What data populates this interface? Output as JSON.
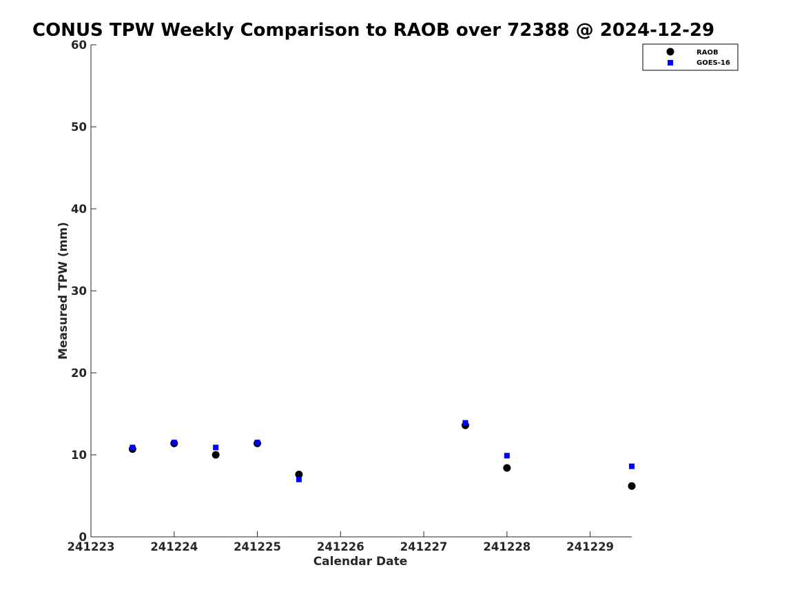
{
  "chart_data": {
    "type": "scatter",
    "title": "CONUS TPW Weekly Comparison to RAOB over 72388 @ 2024-12-29",
    "xlabel": "Calendar Date",
    "ylabel": "Measured TPW (mm)",
    "x_ticks": [
      "241223",
      "241224",
      "241225",
      "241226",
      "241227",
      "241228",
      "241229"
    ],
    "y_ticks": [
      "0",
      "10",
      "20",
      "30",
      "40",
      "50",
      "60"
    ],
    "xlim": [
      "2024-12-23T00:00",
      "2024-12-29T12:00"
    ],
    "ylim": [
      0,
      60
    ],
    "grid": false,
    "legend_position": "top-right",
    "series": [
      {
        "name": "RAOB",
        "marker": "circle",
        "color": "#000000",
        "points": [
          {
            "x": "2024-12-23T12:00",
            "y": 10.7
          },
          {
            "x": "2024-12-24T00:00",
            "y": 11.4
          },
          {
            "x": "2024-12-24T12:00",
            "y": 10.0
          },
          {
            "x": "2024-12-25T00:00",
            "y": 11.4
          },
          {
            "x": "2024-12-25T12:00",
            "y": 7.6
          },
          {
            "x": "2024-12-27T12:00",
            "y": 13.6
          },
          {
            "x": "2024-12-28T00:00",
            "y": 8.4
          },
          {
            "x": "2024-12-29T12:00",
            "y": 6.2
          }
        ]
      },
      {
        "name": "GOES-16",
        "marker": "square",
        "color": "#0000ff",
        "points": [
          {
            "x": "2024-12-23T12:00",
            "y": 10.9
          },
          {
            "x": "2024-12-24T00:00",
            "y": 11.5
          },
          {
            "x": "2024-12-24T12:00",
            "y": 10.9
          },
          {
            "x": "2024-12-25T00:00",
            "y": 11.5
          },
          {
            "x": "2024-12-25T12:00",
            "y": 7.0
          },
          {
            "x": "2024-12-27T12:00",
            "y": 13.9
          },
          {
            "x": "2024-12-28T00:00",
            "y": 9.9
          },
          {
            "x": "2024-12-29T12:00",
            "y": 8.6
          }
        ]
      }
    ]
  }
}
